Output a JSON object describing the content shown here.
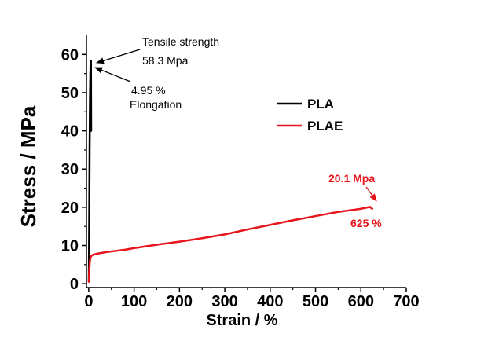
{
  "chart_data": {
    "type": "line",
    "title": "",
    "xlabel": "Strain / %",
    "ylabel": "Stress / MPa",
    "xlim": [
      -5,
      700
    ],
    "ylim": [
      -1,
      65
    ],
    "x_ticks": [
      0,
      100,
      200,
      300,
      400,
      500,
      600,
      700
    ],
    "y_ticks": [
      0,
      10,
      20,
      30,
      40,
      50,
      60
    ],
    "legend_placement": "right",
    "series": [
      {
        "name": "PLA",
        "color": "#000000",
        "x": [
          0.3,
          1.2,
          2.0,
          3.0,
          4.0,
          4.95,
          5.3
        ],
        "y": [
          1.0,
          18.0,
          36.0,
          50.0,
          57.0,
          58.3,
          40.0
        ]
      },
      {
        "name": "PLAE",
        "color": "#e8141b",
        "x": [
          0,
          0.5,
          1,
          2,
          3,
          4,
          6,
          10,
          20,
          40,
          60,
          80,
          100,
          150,
          200,
          250,
          300,
          350,
          400,
          450,
          500,
          550,
          600,
          620,
          625
        ],
        "y": [
          0.5,
          1.5,
          3.0,
          5.0,
          6.3,
          6.9,
          7.3,
          7.6,
          7.9,
          8.3,
          8.6,
          8.9,
          9.3,
          10.2,
          11.0,
          11.9,
          12.9,
          14.2,
          15.4,
          16.6,
          17.7,
          18.8,
          19.6,
          20.1,
          19.6
        ]
      }
    ],
    "annotations": {
      "pla_tensile_label": "Tensile strength",
      "pla_tensile_value": "58.3 Mpa",
      "pla_elong_value": "4.95 %",
      "pla_elong_label": "Elongation",
      "plae_stress_value": "20.1 Mpa",
      "plae_strain_value": "625 %"
    }
  }
}
